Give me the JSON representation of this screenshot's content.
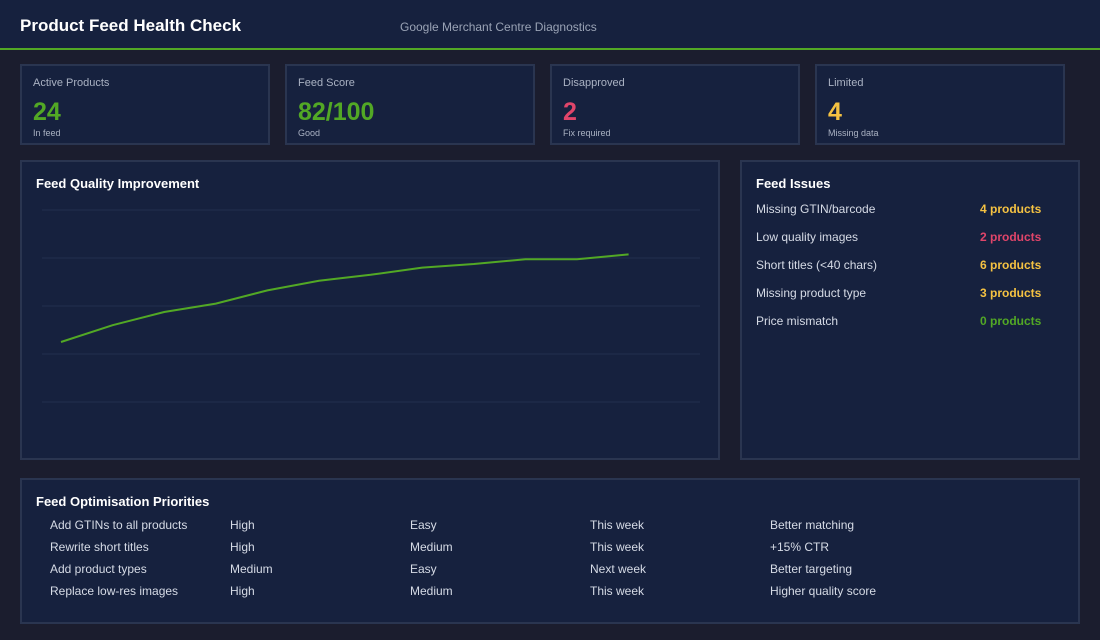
{
  "header": {
    "title": "Product Feed Health Check",
    "subtitle": "Google Merchant Centre Diagnostics"
  },
  "cards": [
    {
      "label": "Active Products",
      "value": "24",
      "note": "In feed"
    },
    {
      "label": "Feed Score",
      "value": "82/100",
      "note": "Good"
    },
    {
      "label": "Disapproved",
      "value": "2",
      "note": "Fix required"
    },
    {
      "label": "Limited",
      "value": "4",
      "note": "Missing data"
    }
  ],
  "chart_data": {
    "type": "line",
    "title": "Feed Quality Improvement",
    "categories": [
      null,
      null,
      null,
      null,
      null,
      null,
      null,
      null,
      null,
      null,
      null,
      null
    ],
    "series": [
      {
        "color": "#52a825",
        "values": [
          45,
          52,
          57.5,
          61,
          66.5,
          70.5,
          73,
          76,
          77.5,
          79.5,
          79.5,
          81.5
        ]
      }
    ],
    "ylim": [
      0,
      100
    ],
    "ygrid": [
      20,
      40,
      60,
      80,
      100
    ],
    "grid": true
  },
  "issues": {
    "title": "Feed Issues",
    "rows": [
      {
        "label": "Missing GTIN/barcode",
        "value": "4 products"
      },
      {
        "label": "Low quality images",
        "value": "2 products"
      },
      {
        "label": "Short titles (<40 chars)",
        "value": "6 products"
      },
      {
        "label": "Missing product type",
        "value": "3 products"
      },
      {
        "label": "Price mismatch",
        "value": "0 products"
      }
    ]
  },
  "priorities": {
    "title": "Feed Optimisation Priorities",
    "rows": [
      [
        "Add GTINs to all products",
        "High",
        "Easy",
        "This week",
        "Better matching"
      ],
      [
        "Rewrite short titles",
        "High",
        "Medium",
        "This week",
        "+15% CTR"
      ],
      [
        "Add product types",
        "Medium",
        "Easy",
        "Next week",
        "Better targeting"
      ],
      [
        "Replace low-res images",
        "High",
        "Medium",
        "This week",
        "Higher quality score"
      ]
    ]
  }
}
